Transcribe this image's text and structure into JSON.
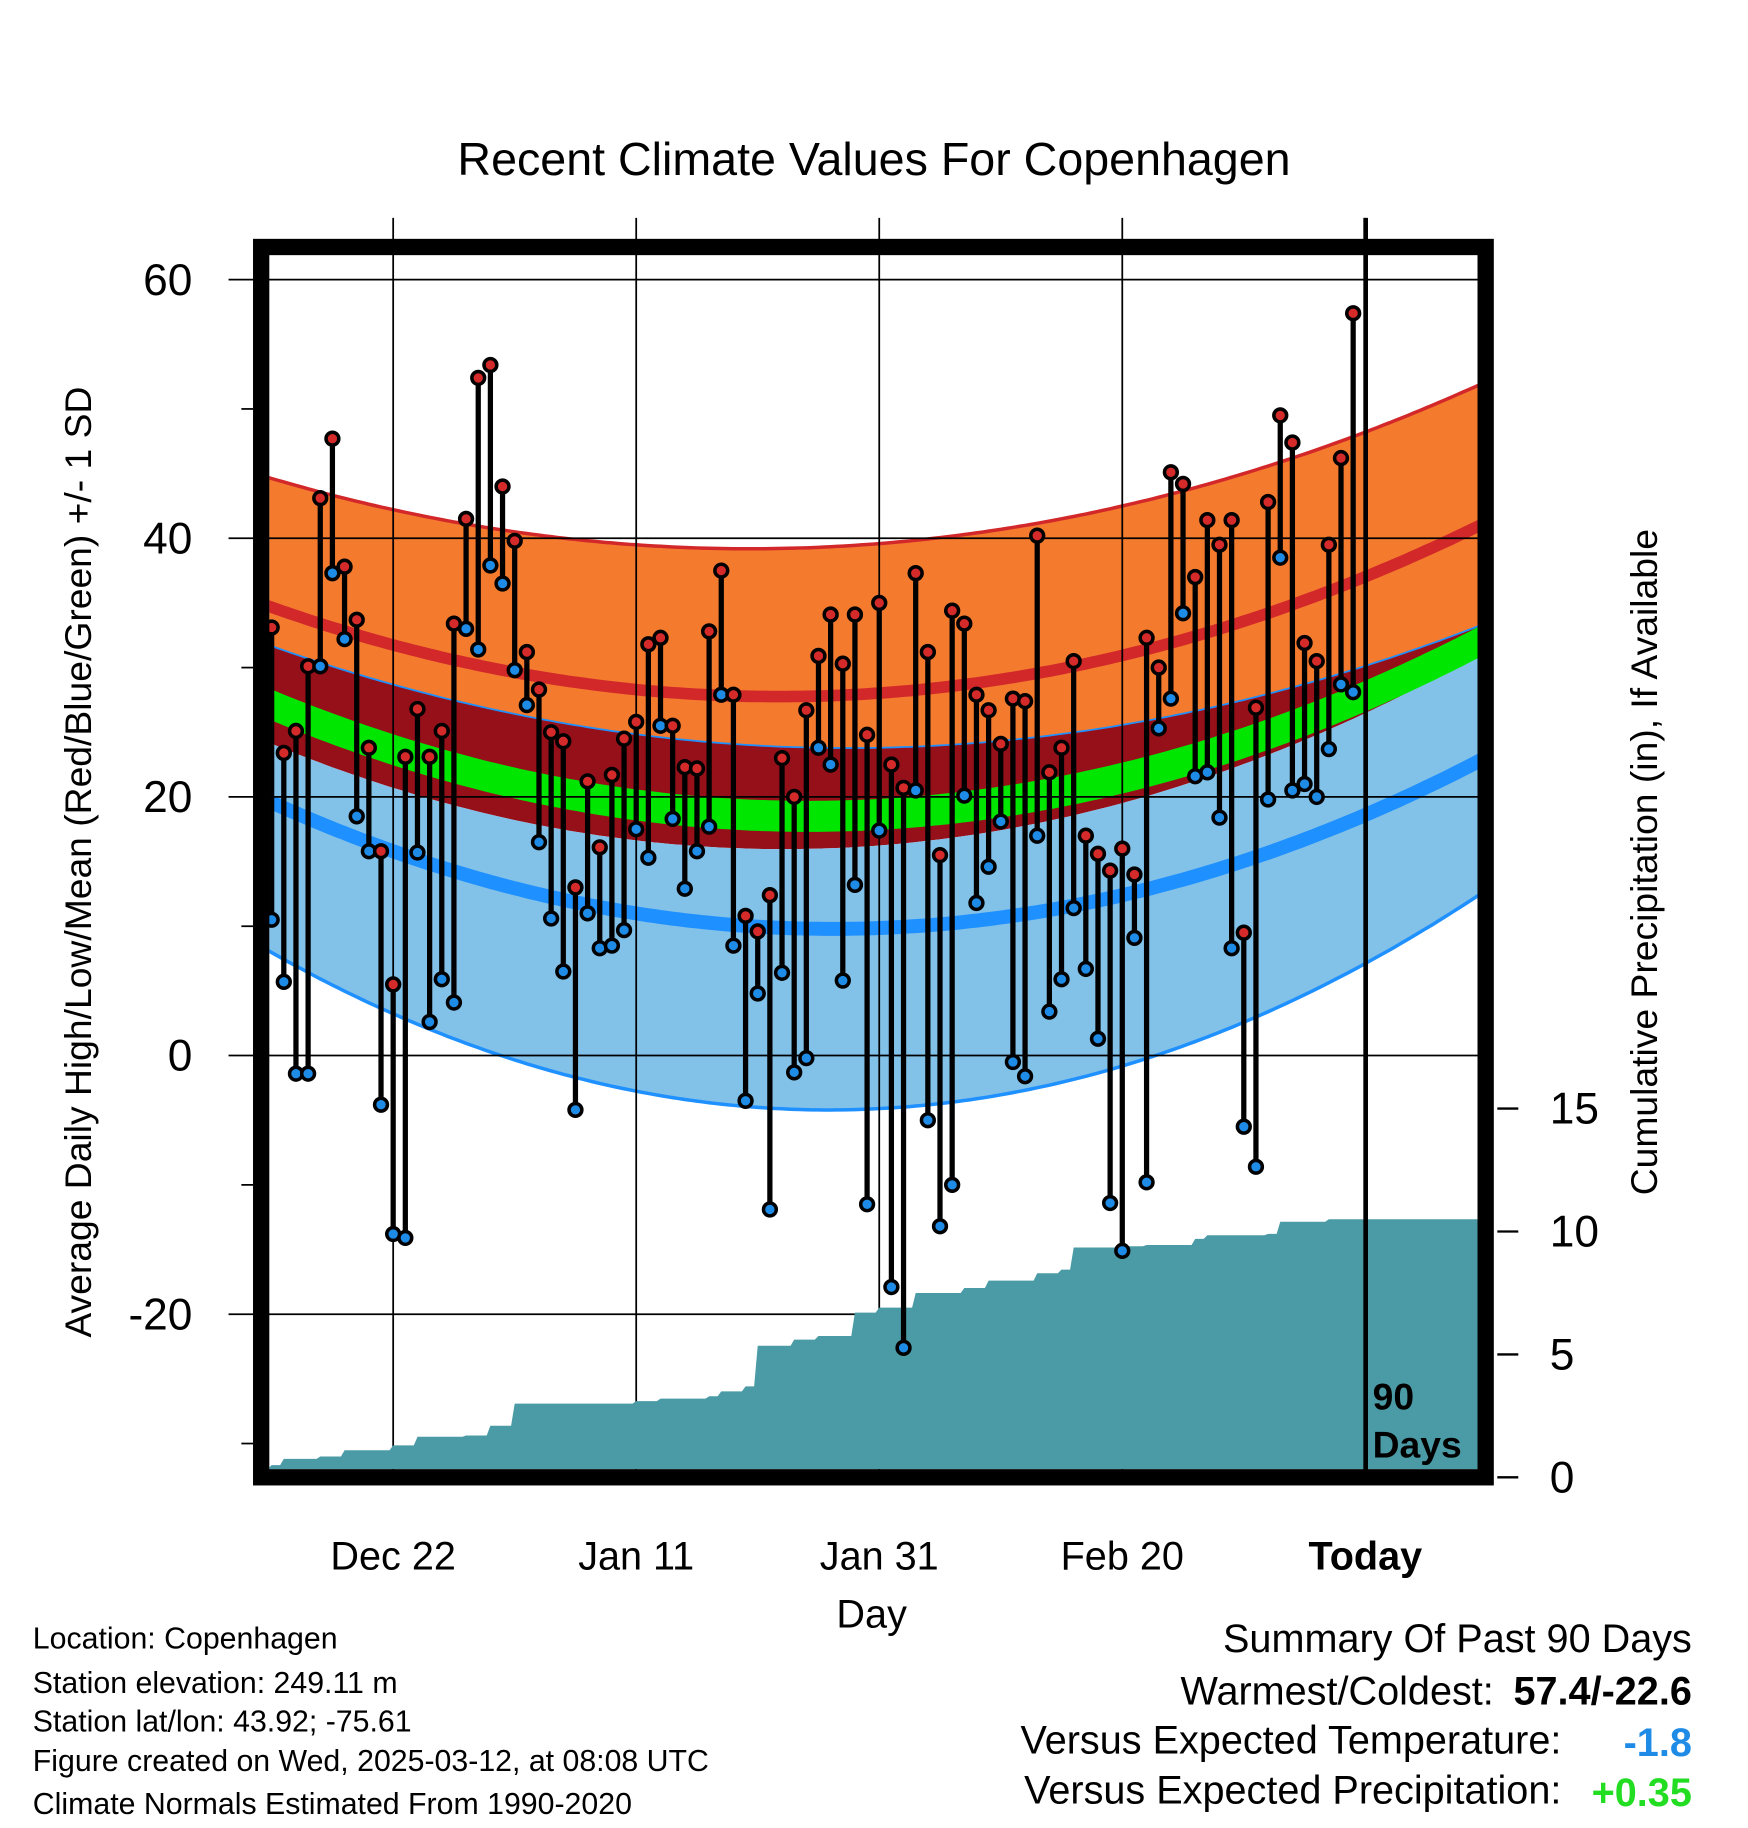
{
  "chart_data": {
    "type": "line",
    "title": "Recent Climate Values For Copenhagen",
    "xlabel": "Day",
    "ylabel": "Average Daily High/Low/Mean (Red/Blue/Green) +/- 1 SD",
    "ylabel_right": "Cumulative Precipitation (in), If Available",
    "ylim": [
      -32.6,
      62.7
    ],
    "yticks": [
      60,
      40,
      20,
      0,
      -20
    ],
    "ytick_labels": [
      "60",
      "40",
      "20",
      "0",
      "-20"
    ],
    "yticks_right": [
      15,
      10,
      5,
      0
    ],
    "ytick_labels_right": [
      "15",
      "10",
      "5",
      "0"
    ],
    "xticks": [
      10,
      30,
      50,
      70,
      90
    ],
    "xtick_labels": [
      "Dec 22",
      "Jan 11",
      "Jan 31",
      "Feb 20",
      "Today"
    ],
    "today_marker": {
      "day": 90,
      "label_line1": "90",
      "label_line2": "Days"
    },
    "x_note": "day 0 = Dec 12, day 90 = Today (Mar 12)",
    "highs": [
      33.1,
      23.4,
      25.1,
      30.1,
      43.1,
      47.7,
      37.8,
      33.7,
      23.8,
      15.8,
      5.5,
      23.1,
      26.8,
      23.1,
      25.1,
      33.4,
      41.5,
      52.4,
      53.4,
      44.0,
      39.8,
      31.2,
      28.3,
      25.0,
      24.3,
      13.0,
      21.2,
      16.1,
      21.7,
      24.5,
      25.8,
      31.8,
      32.3,
      25.5,
      22.3,
      22.2,
      32.8,
      37.5,
      27.9,
      10.8,
      9.6,
      12.4,
      23.0,
      20.0,
      26.7,
      30.9,
      34.1,
      30.3,
      34.1,
      24.8,
      35.0,
      22.5,
      20.7,
      37.3,
      31.2,
      15.5,
      34.4,
      33.4,
      27.9,
      26.7,
      24.1,
      27.6,
      27.4,
      40.2,
      21.9,
      23.8,
      30.5,
      17.0,
      15.6,
      14.3,
      16.0,
      14.0,
      32.3,
      30.0,
      45.1,
      44.2,
      37.0,
      41.4,
      39.5,
      41.4,
      9.5,
      26.9,
      42.8,
      49.5,
      47.4,
      31.9,
      30.5,
      39.5,
      46.2,
      57.4
    ],
    "lows": [
      10.5,
      5.7,
      -1.4,
      -1.4,
      30.1,
      37.3,
      32.2,
      18.5,
      15.8,
      -3.8,
      -13.8,
      -14.1,
      15.7,
      2.6,
      5.9,
      4.1,
      33.0,
      31.4,
      37.9,
      36.5,
      29.8,
      27.1,
      16.5,
      10.6,
      6.5,
      -4.2,
      11.0,
      8.3,
      8.5,
      9.7,
      17.5,
      15.3,
      25.5,
      18.3,
      12.9,
      15.8,
      17.7,
      27.9,
      8.5,
      -3.5,
      4.8,
      -11.9,
      6.4,
      -1.3,
      -0.2,
      23.8,
      22.5,
      5.8,
      13.2,
      -11.5,
      17.4,
      -17.9,
      -22.6,
      20.5,
      -5.0,
      -13.2,
      -10.0,
      20.1,
      11.8,
      14.6,
      18.1,
      -0.5,
      -1.6,
      17.0,
      3.4,
      5.9,
      11.4,
      6.7,
      1.3,
      -11.4,
      -15.1,
      9.1,
      -9.8,
      25.3,
      27.6,
      34.2,
      21.6,
      21.9,
      18.4,
      8.3,
      -5.5,
      -8.6,
      19.8,
      38.5,
      20.5,
      21.0,
      20.0,
      23.7,
      28.7,
      28.1
    ],
    "normals": {
      "days": [
        -1,
        45,
        99
      ],
      "high_plus_sd": [
        44.9,
        39.3,
        51.7
      ],
      "high_mean": [
        35.0,
        27.8,
        40.8
      ],
      "high_minus_sd": [
        32.0,
        23.8,
        33.1
      ],
      "mean": [
        27.5,
        18.5,
        31.8
      ],
      "low_plus_sd": [
        24.5,
        16.0,
        30.8
      ],
      "low_mean": [
        20.0,
        9.8,
        22.6
      ],
      "low_minus_sd": [
        8.5,
        -4.2,
        12.2
      ]
    },
    "precip_cumulative": [
      [
        0,
        0.5
      ],
      [
        1,
        0.75
      ],
      [
        4,
        0.85
      ],
      [
        6,
        1.1
      ],
      [
        10,
        1.3
      ],
      [
        12,
        1.65
      ],
      [
        16,
        1.7
      ],
      [
        18,
        2.1
      ],
      [
        20,
        3.0
      ],
      [
        30,
        3.1
      ],
      [
        32,
        3.2
      ],
      [
        36,
        3.3
      ],
      [
        37,
        3.5
      ],
      [
        39,
        3.7
      ],
      [
        40,
        5.35
      ],
      [
        43,
        5.6
      ],
      [
        45,
        5.75
      ],
      [
        48,
        6.7
      ],
      [
        50,
        6.9
      ],
      [
        53,
        7.5
      ],
      [
        57,
        7.7
      ],
      [
        59,
        8.0
      ],
      [
        63,
        8.3
      ],
      [
        65,
        8.45
      ],
      [
        66,
        9.35
      ],
      [
        70,
        9.4
      ],
      [
        72,
        9.45
      ],
      [
        76,
        9.7
      ],
      [
        77,
        9.85
      ],
      [
        82,
        9.9
      ],
      [
        83,
        10.4
      ],
      [
        87,
        10.5
      ],
      [
        99,
        10.5
      ]
    ]
  },
  "footer": {
    "location": "Location: Copenhagen",
    "elevation": "Station elevation: 249.11 m",
    "latlon": "Station lat/lon: 43.92; -75.61",
    "created": "Figure created on Wed, 2025-03-12, at 08:08 UTC",
    "normals": "Climate Normals Estimated From 1990-2020"
  },
  "summary": {
    "title": "Summary Of Past 90 Days",
    "warm_cold_label": "Warmest/Coldest:",
    "warm_cold_value": "57.4/-22.6",
    "temp_label": "Versus Expected Temperature:",
    "temp_value": "-1.8",
    "precip_label": "Versus Expected Precipitation:",
    "precip_value": "+0.35"
  },
  "colors": {
    "high_dot": "#d42a2a",
    "low_dot": "#1e8ce6",
    "orange_band": "#f47a2e",
    "dark_red_band": "#96101a",
    "light_blue_band": "#82c1e8",
    "mean_green": "#00e600",
    "high_line": "#d2282a",
    "low_line": "#1e90ff",
    "precip": "#4a9ba6",
    "temp_value": "#1e8ce6",
    "precip_value": "#22dd22"
  }
}
